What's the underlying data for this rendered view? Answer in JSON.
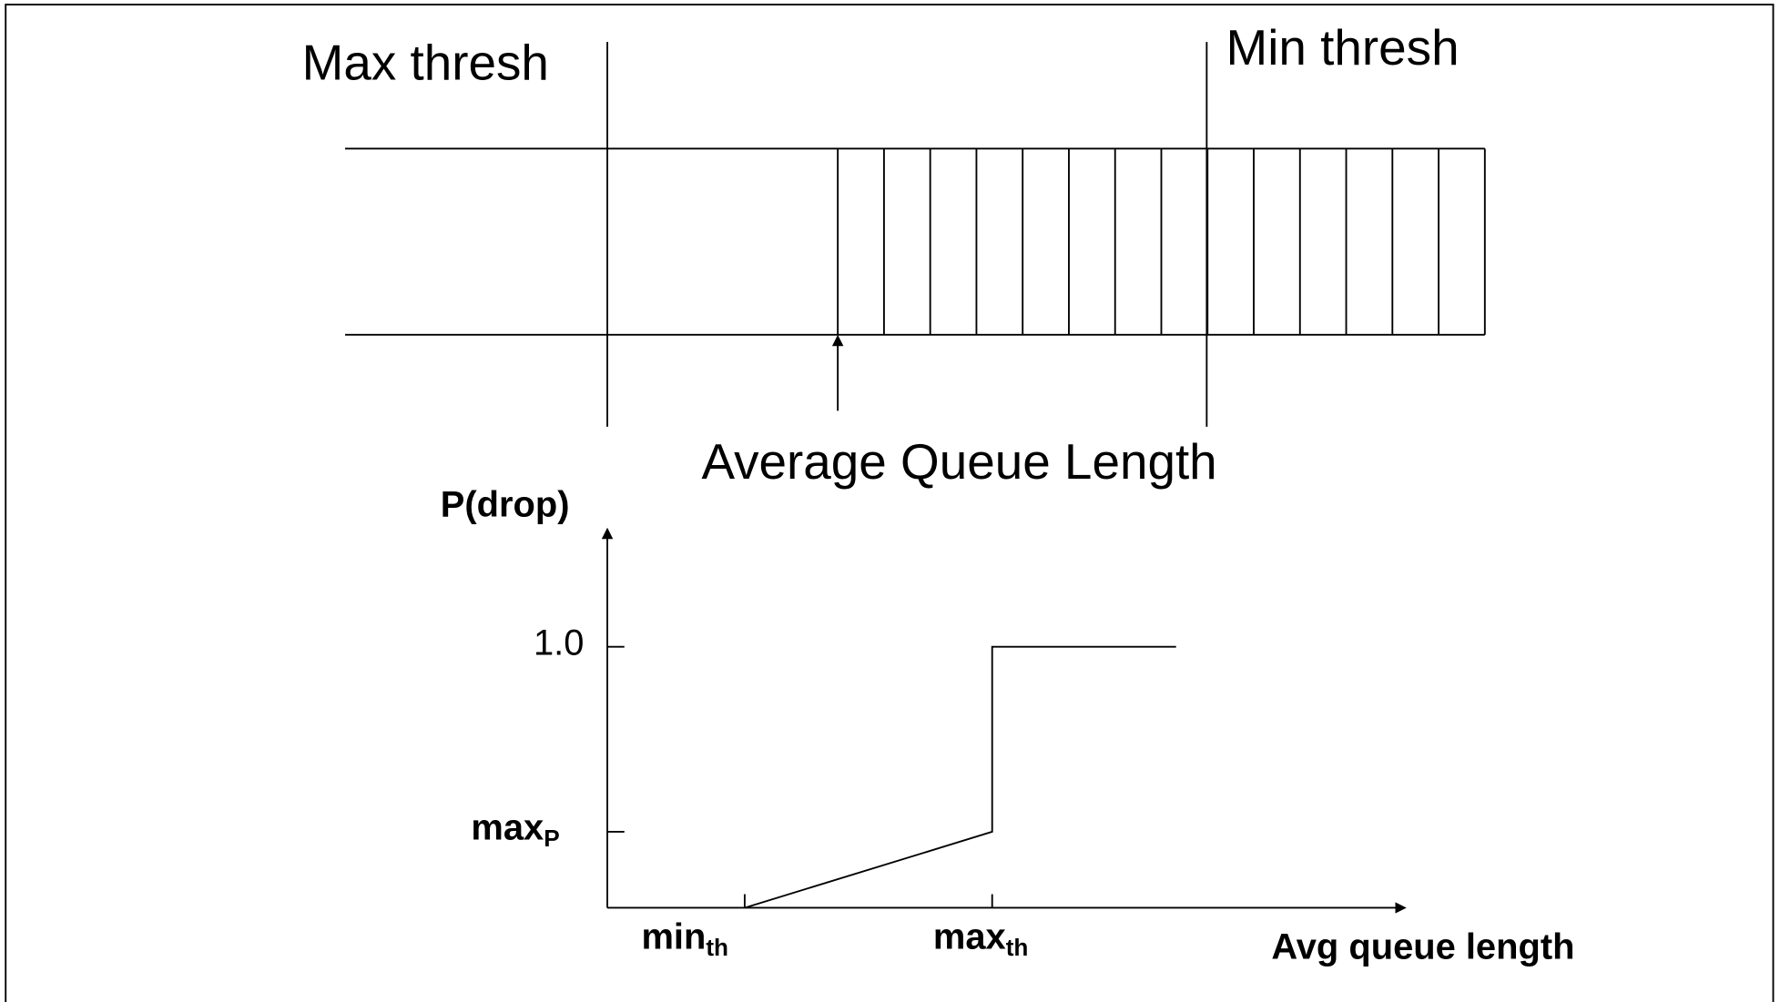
{
  "queue": {
    "max_thresh_label": "Max thresh",
    "min_thresh_label": "Min thresh",
    "axis_label": "Average Queue Length"
  },
  "graph": {
    "y_axis_label": "P(drop)",
    "y_top_label": "1.0",
    "y_mid_label": {
      "text": "max",
      "sub": "P"
    },
    "x_min_label": {
      "text": "min",
      "sub": "th"
    },
    "x_max_label": {
      "text": "max",
      "sub": "th"
    },
    "x_axis_label": "Avg queue length"
  }
}
